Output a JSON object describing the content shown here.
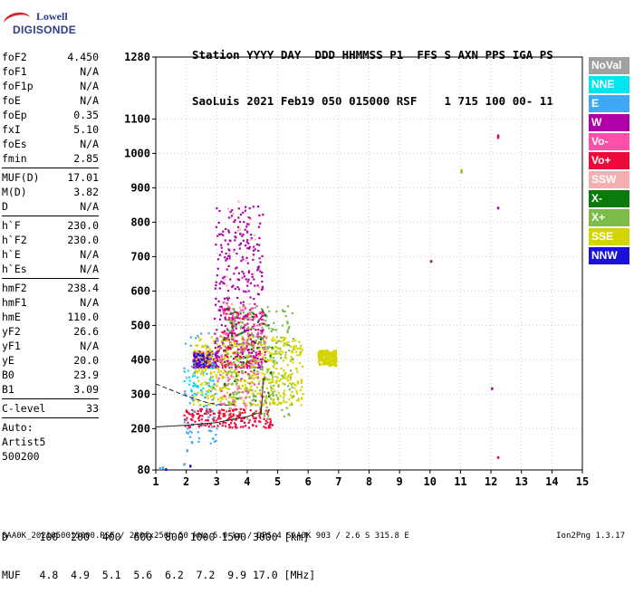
{
  "logo": {
    "line1": "Lowell",
    "line2": "DIGISONDE"
  },
  "header": {
    "line1": "Station YYYY DAY  DDD HHMMSS P1  FFS S AXN PPS IGA PS",
    "line2": "SaoLuis 2021 Feb19 050 015000 RSF    1 715 100 00- 11"
  },
  "params": {
    "group1": [
      {
        "name": "foF2",
        "value": "4.450"
      },
      {
        "name": "foF1",
        "value": "N/A"
      },
      {
        "name": "foF1p",
        "value": "N/A"
      },
      {
        "name": "foE",
        "value": "N/A"
      },
      {
        "name": "foEp",
        "value": "0.35"
      },
      {
        "name": "fxI",
        "value": "5.10"
      },
      {
        "name": "foEs",
        "value": "N/A"
      },
      {
        "name": "fmin",
        "value": "2.85"
      }
    ],
    "group2": [
      {
        "name": "MUF(D)",
        "value": "17.01"
      },
      {
        "name": "M(D)",
        "value": "3.82"
      },
      {
        "name": "D",
        "value": "N/A"
      }
    ],
    "group3": [
      {
        "name": "h`F",
        "value": "230.0"
      },
      {
        "name": "h`F2",
        "value": "230.0"
      },
      {
        "name": "h`E",
        "value": "N/A"
      },
      {
        "name": "h`Es",
        "value": "N/A"
      }
    ],
    "group4": [
      {
        "name": "hmF2",
        "value": "238.4"
      },
      {
        "name": "hmF1",
        "value": "N/A"
      },
      {
        "name": "hmE",
        "value": "110.0"
      },
      {
        "name": "yF2",
        "value": "26.6"
      },
      {
        "name": "yF1",
        "value": "N/A"
      },
      {
        "name": "yE",
        "value": "20.0"
      },
      {
        "name": "B0",
        "value": "23.9"
      },
      {
        "name": "B1",
        "value": "3.09"
      }
    ],
    "group5": [
      {
        "name": "C-level",
        "value": "33"
      }
    ],
    "auto_label": "Auto:",
    "artist": "Artist5",
    "artist_version": "500200"
  },
  "legend": [
    {
      "label": "NoVal",
      "color": "#a0a0a0"
    },
    {
      "label": "NNE",
      "color": "#00e5ee"
    },
    {
      "label": "E",
      "color": "#3fa9f5"
    },
    {
      "label": "W",
      "color": "#b000a8"
    },
    {
      "label": "Vo-",
      "color": "#ff4fa8"
    },
    {
      "label": "Vo+",
      "color": "#ee0a3a"
    },
    {
      "label": "SSW",
      "color": "#f4b0b0"
    },
    {
      "label": "X-",
      "color": "#0a7a0a"
    },
    {
      "label": "X+",
      "color": "#7cbd4a"
    },
    {
      "label": "SSE",
      "color": "#d4d400"
    },
    {
      "label": "NNW",
      "color": "#1a10d8"
    }
  ],
  "dmuf": {
    "d_row": "D     100  200  400  600  800 1000 1500 3000 [km]",
    "muf_row": "MUF   4.8  4.9  5.1  5.6  6.2  7.2  9.9 17.0 [MHz]"
  },
  "footer": "SAA0K_2021050015000.RSF / 280fx256h 50 kHz 5.0 km / DPS-4 SAA0K 903 / 2.6 S 315.8 E",
  "version": "Ion2Png 1.3.17",
  "chart_data": {
    "type": "scatter",
    "title": "",
    "xlabel": "",
    "ylabel": "",
    "x_ticks": [
      1,
      2,
      3,
      4,
      5,
      6,
      7,
      8,
      9,
      10,
      11,
      12,
      13,
      14,
      15
    ],
    "y_ticks": [
      80,
      200,
      300,
      400,
      500,
      600,
      700,
      800,
      900,
      1000,
      1100,
      1280
    ],
    "xlim": [
      1,
      15
    ],
    "ylim": [
      80,
      1280
    ],
    "grid": "dotted",
    "legend_position": "right",
    "series": [
      {
        "name": "W",
        "color": "#b000a8",
        "clusters": [
          {
            "x": [
              2.9,
              4.5
            ],
            "y": [
              380,
              850
            ]
          },
          {
            "x": [
              2.2,
              3.0
            ],
            "y": [
              380,
              430
            ]
          }
        ],
        "points": [
          [
            12.2,
            1055
          ],
          [
            12.2,
            845
          ],
          [
            10.0,
            690
          ],
          [
            12.0,
            320
          ]
        ]
      },
      {
        "name": "SSE",
        "color": "#d4d400",
        "clusters": [
          {
            "x": [
              2.2,
              5.8
            ],
            "y": [
              270,
              470
            ]
          },
          {
            "x": [
              6.3,
              6.9
            ],
            "y": [
              385,
              430
            ]
          }
        ],
        "points": [
          [
            11.0,
            955
          ]
        ]
      },
      {
        "name": "Vo+",
        "color": "#ee0a3a",
        "clusters": [
          {
            "x": [
              1.9,
              4.8
            ],
            "y": [
              205,
              260
            ]
          },
          {
            "x": [
              3.1,
              4.6
            ],
            "y": [
              360,
              560
            ]
          }
        ],
        "points": [
          [
            12.2,
            1050
          ],
          [
            12.2,
            120
          ]
        ]
      },
      {
        "name": "Vo-",
        "color": "#ff4fa8",
        "clusters": [
          {
            "x": [
              3.0,
              4.6
            ],
            "y": [
              260,
              560
            ]
          }
        ],
        "points": []
      },
      {
        "name": "X+",
        "color": "#7cbd4a",
        "clusters": [
          {
            "x": [
              3.3,
              5.5
            ],
            "y": [
              230,
              560
            ]
          }
        ],
        "points": [
          [
            11.0,
            950
          ]
        ]
      },
      {
        "name": "X-",
        "color": "#0a7a0a",
        "clusters": [
          {
            "x": [
              3.2,
              4.8
            ],
            "y": [
              280,
              560
            ]
          }
        ],
        "points": []
      },
      {
        "name": "E",
        "color": "#3fa9f5",
        "clusters": [
          {
            "x": [
              1.9,
              3.0
            ],
            "y": [
              150,
              480
            ]
          }
        ],
        "points": [
          [
            1.2,
            90
          ],
          [
            1.1,
            88
          ],
          [
            1.9,
            100
          ],
          [
            2.0,
            140
          ]
        ]
      },
      {
        "name": "NNE",
        "color": "#00e5ee",
        "clusters": [
          {
            "x": [
              1.9,
              2.8
            ],
            "y": [
              300,
              380
            ]
          }
        ],
        "points": []
      },
      {
        "name": "SSW",
        "color": "#f4b0b0",
        "clusters": [
          {
            "x": [
              3.2,
              4.4
            ],
            "y": [
              250,
              900
            ]
          }
        ],
        "points": []
      },
      {
        "name": "NNW",
        "color": "#1a10d8",
        "clusters": [
          {
            "x": [
              2.2,
              2.8
            ],
            "y": [
              380,
              420
            ]
          }
        ],
        "points": [
          [
            1.3,
            85
          ],
          [
            2.1,
            95
          ]
        ]
      }
    ],
    "traces": [
      {
        "style": "solid",
        "points": [
          [
            1.0,
            205
          ],
          [
            2.0,
            210
          ],
          [
            3.0,
            218
          ],
          [
            4.0,
            235
          ],
          [
            4.35,
            245
          ]
        ]
      },
      {
        "style": "dashed",
        "points": [
          [
            1.0,
            330
          ],
          [
            2.0,
            295
          ],
          [
            2.7,
            275
          ],
          [
            3.2,
            268
          ],
          [
            3.6,
            270
          ]
        ]
      },
      {
        "style": "solid",
        "points": [
          [
            4.45,
            240
          ],
          [
            4.5,
            300
          ],
          [
            4.52,
            345
          ]
        ]
      }
    ]
  }
}
